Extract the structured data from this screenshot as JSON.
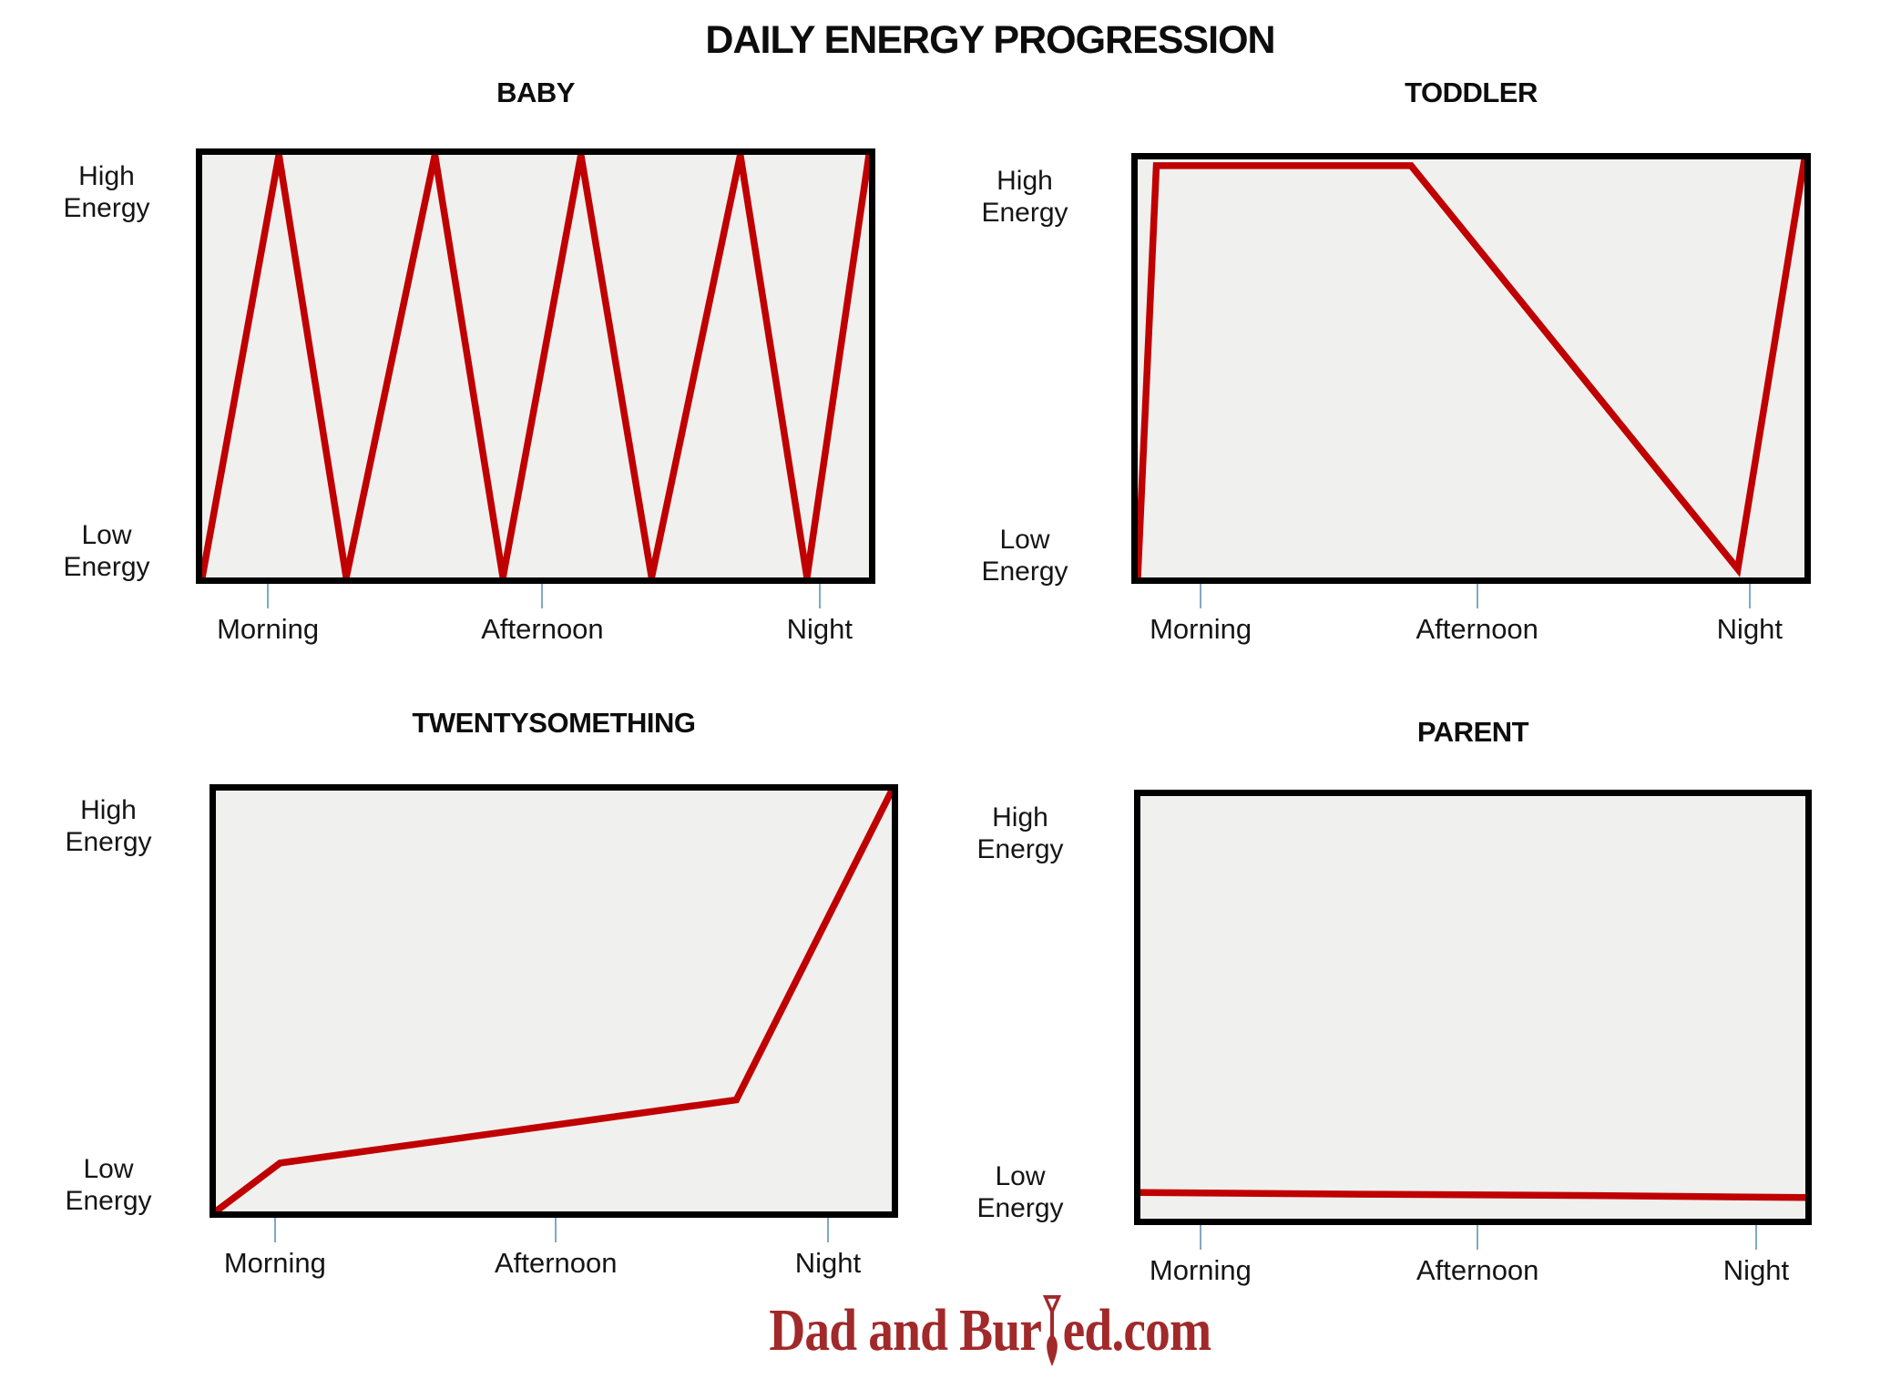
{
  "page": {
    "title": "DAILY ENERGY PROGRESSION",
    "watermark": {
      "pre": "Dad and Bur",
      "post": "ed.com"
    }
  },
  "colors": {
    "line": "#c00000",
    "tick": "#7fa9c4",
    "chart_bg": "#f0f0ef",
    "border": "#000000",
    "watermark": "#a1292a",
    "text": "#111111"
  },
  "chart_data": [
    {
      "type": "line",
      "title": "BABY",
      "x_tick_labels": [
        "Morning",
        "Afternoon",
        "Night"
      ],
      "x_tick_pos": [
        0.106,
        0.51,
        0.918
      ],
      "y_axis": {
        "high_lines": [
          "High",
          "Energy"
        ],
        "low_lines": [
          "Low",
          "Energy"
        ],
        "range": [
          0,
          1
        ]
      },
      "series": [
        {
          "name": "energy",
          "points": [
            [
              0,
              0
            ],
            [
              0.115,
              1
            ],
            [
              0.216,
              0
            ],
            [
              0.349,
              1
            ],
            [
              0.451,
              0
            ],
            [
              0.568,
              1
            ],
            [
              0.674,
              0
            ],
            [
              0.807,
              1
            ],
            [
              0.907,
              0
            ],
            [
              1,
              1
            ]
          ]
        }
      ]
    },
    {
      "type": "line",
      "title": "TODDLER",
      "x_tick_labels": [
        "Morning",
        "Afternoon",
        "Night"
      ],
      "x_tick_pos": [
        0.102,
        0.509,
        0.91
      ],
      "y_axis": {
        "high_lines": [
          "High",
          "Energy"
        ],
        "low_lines": [
          "Low",
          "Energy"
        ],
        "range": [
          0,
          1
        ]
      },
      "series": [
        {
          "name": "energy",
          "points": [
            [
              0,
              0
            ],
            [
              0.028,
              0.985
            ],
            [
              0.41,
              0.985
            ],
            [
              0.9,
              0.02
            ],
            [
              1,
              1
            ]
          ]
        }
      ]
    },
    {
      "type": "line",
      "title": "TWENTYSOMETHING",
      "x_tick_labels": [
        "Morning",
        "Afternoon",
        "Night"
      ],
      "x_tick_pos": [
        0.095,
        0.503,
        0.898
      ],
      "y_axis": {
        "high_lines": [
          "High",
          "Energy"
        ],
        "low_lines": [
          "Low",
          "Energy"
        ],
        "range": [
          0,
          1
        ]
      },
      "series": [
        {
          "name": "energy",
          "points": [
            [
              0,
              0
            ],
            [
              0.095,
              0.115
            ],
            [
              0.77,
              0.265
            ],
            [
              1,
              1
            ]
          ]
        }
      ]
    },
    {
      "type": "line",
      "title": "PARENT",
      "x_tick_labels": [
        "Morning",
        "Afternoon",
        "Night"
      ],
      "x_tick_pos": [
        0.098,
        0.507,
        0.918
      ],
      "y_axis": {
        "high_lines": [
          "High",
          "Energy"
        ],
        "low_lines": [
          "Low",
          "Energy"
        ],
        "range": [
          0,
          1
        ]
      },
      "series": [
        {
          "name": "energy",
          "points": [
            [
              0,
              0.062
            ],
            [
              0.33,
              0.058
            ],
            [
              0.66,
              0.055
            ],
            [
              1,
              0.05
            ]
          ]
        }
      ]
    }
  ]
}
